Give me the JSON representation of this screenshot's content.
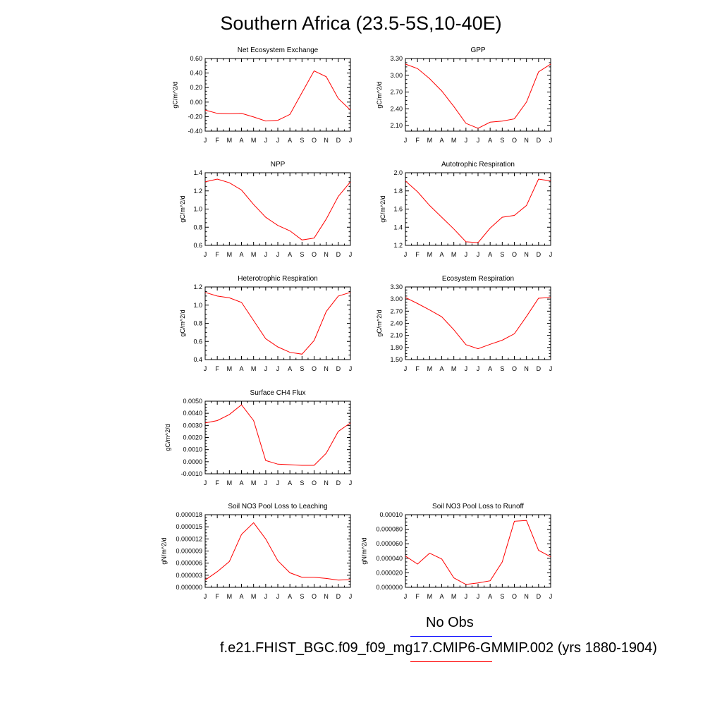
{
  "title": "Southern Africa (23.5-5S,10-40E)",
  "months": [
    "J",
    "F",
    "M",
    "A",
    "M",
    "J",
    "J",
    "A",
    "S",
    "O",
    "N",
    "D",
    "J"
  ],
  "colors": {
    "model": "#ff0000",
    "obs": "#0000ff"
  },
  "legend": {
    "obs_label": "No Obs",
    "model_label": "f.e21.FHIST_BGC.f09_f09_mg17.CMIP6-GMMIP.002 (yrs 1880-1904)"
  },
  "chart_data": [
    {
      "type": "line",
      "title": "Net Ecosystem Exchange",
      "ylabel": "gC/m^2/d",
      "ylim": [
        -0.4,
        0.6
      ],
      "yticks": [
        "-0.40",
        "-0.20",
        "0.00",
        "0.20",
        "0.40",
        "0.60"
      ],
      "categories": [
        "J",
        "F",
        "M",
        "A",
        "M",
        "J",
        "J",
        "A",
        "S",
        "O",
        "N",
        "D",
        "J"
      ],
      "series": [
        {
          "values": [
            -0.11,
            -0.155,
            -0.16,
            -0.155,
            -0.205,
            -0.26,
            -0.25,
            -0.17,
            0.13,
            0.43,
            0.35,
            0.05,
            -0.11
          ]
        }
      ]
    },
    {
      "type": "line",
      "title": "GPP",
      "ylabel": "gC/m^2/d",
      "ylim": [
        2.0,
        3.3
      ],
      "yticks": [
        "2.10",
        "2.40",
        "2.70",
        "3.00",
        "3.30"
      ],
      "categories": [
        "J",
        "F",
        "M",
        "A",
        "M",
        "J",
        "J",
        "A",
        "S",
        "O",
        "N",
        "D",
        "J"
      ],
      "series": [
        {
          "values": [
            3.2,
            3.12,
            2.94,
            2.72,
            2.44,
            2.14,
            2.05,
            2.16,
            2.18,
            2.22,
            2.52,
            3.06,
            3.2
          ]
        }
      ]
    },
    {
      "type": "line",
      "title": "NPP",
      "ylabel": "gC/m^2/d",
      "ylim": [
        0.6,
        1.4
      ],
      "yticks": [
        "0.6",
        "0.8",
        "1.0",
        "1.2",
        "1.4"
      ],
      "categories": [
        "J",
        "F",
        "M",
        "A",
        "M",
        "J",
        "J",
        "A",
        "S",
        "O",
        "N",
        "D",
        "J"
      ],
      "series": [
        {
          "values": [
            1.3,
            1.33,
            1.29,
            1.21,
            1.05,
            0.91,
            0.82,
            0.76,
            0.66,
            0.68,
            0.89,
            1.14,
            1.3
          ]
        }
      ]
    },
    {
      "type": "line",
      "title": "Autotrophic Respiration",
      "ylabel": "gC/m^2/d",
      "ylim": [
        1.2,
        2.0
      ],
      "yticks": [
        "1.2",
        "1.4",
        "1.6",
        "1.8",
        "2.0"
      ],
      "categories": [
        "J",
        "F",
        "M",
        "A",
        "M",
        "J",
        "J",
        "A",
        "S",
        "O",
        "N",
        "D",
        "J"
      ],
      "series": [
        {
          "values": [
            1.91,
            1.79,
            1.64,
            1.51,
            1.38,
            1.24,
            1.23,
            1.39,
            1.51,
            1.53,
            1.64,
            1.93,
            1.91
          ]
        }
      ]
    },
    {
      "type": "line",
      "title": "Heterotrophic Respiration",
      "ylabel": "gC/m^2/d",
      "ylim": [
        0.4,
        1.2
      ],
      "yticks": [
        "0.4",
        "0.6",
        "0.8",
        "1.0",
        "1.2"
      ],
      "categories": [
        "J",
        "F",
        "M",
        "A",
        "M",
        "J",
        "J",
        "A",
        "S",
        "O",
        "N",
        "D",
        "J"
      ],
      "series": [
        {
          "values": [
            1.14,
            1.1,
            1.08,
            1.03,
            0.83,
            0.63,
            0.54,
            0.48,
            0.46,
            0.61,
            0.93,
            1.1,
            1.14
          ]
        }
      ]
    },
    {
      "type": "line",
      "title": "Ecosystem Respiration",
      "ylabel": "gC/m^2/d",
      "ylim": [
        1.5,
        3.3
      ],
      "yticks": [
        "1.50",
        "1.80",
        "2.10",
        "2.40",
        "2.70",
        "3.00",
        "3.30"
      ],
      "categories": [
        "J",
        "F",
        "M",
        "A",
        "M",
        "J",
        "J",
        "A",
        "S",
        "O",
        "N",
        "D",
        "J"
      ],
      "series": [
        {
          "values": [
            3.04,
            2.89,
            2.73,
            2.56,
            2.24,
            1.87,
            1.77,
            1.88,
            1.98,
            2.14,
            2.57,
            3.02,
            3.04
          ]
        }
      ]
    },
    {
      "type": "line",
      "title": "Surface CH4 Flux",
      "ylabel": "gC/m^2/d",
      "ylim": [
        -0.001,
        0.005
      ],
      "yticks": [
        "-0.0010",
        "0.0000",
        "0.0010",
        "0.0020",
        "0.0030",
        "0.0040",
        "0.0050"
      ],
      "categories": [
        "J",
        "F",
        "M",
        "A",
        "M",
        "J",
        "J",
        "A",
        "S",
        "O",
        "N",
        "D",
        "J"
      ],
      "series": [
        {
          "values": [
            0.0032,
            0.0034,
            0.0039,
            0.0047,
            0.0034,
            0.0001,
            -0.0002,
            -0.00025,
            -0.0003,
            -0.0003,
            0.0007,
            0.0025,
            0.0032
          ]
        }
      ]
    },
    {
      "type": "line",
      "title": "Soil NO3 Pool Loss to Leaching",
      "ylabel": "gN/m^2/d",
      "ylim": [
        0.0,
        1.8e-05
      ],
      "yticks": [
        "0.000000",
        "0.000003",
        "0.000006",
        "0.000009",
        "0.000012",
        "0.000015",
        "0.000018"
      ],
      "categories": [
        "J",
        "F",
        "M",
        "A",
        "M",
        "J",
        "J",
        "A",
        "S",
        "O",
        "N",
        "D",
        "J"
      ],
      "series": [
        {
          "values": [
            1.8e-06,
            3.9e-06,
            6.4e-06,
            1.31e-05,
            1.6e-05,
            1.2e-05,
            6.6e-06,
            3.6e-06,
            2.5e-06,
            2.5e-06,
            2.2e-06,
            1.8e-06,
            1.9e-06
          ]
        }
      ]
    },
    {
      "type": "line",
      "title": "Soil NO3 Pool Loss to Runoff",
      "ylabel": "gN/m^2/d",
      "ylim": [
        0.0,
        0.0001
      ],
      "yticks": [
        "0.000000",
        "0.000020",
        "0.000040",
        "0.000060",
        "0.000080",
        "0.00010"
      ],
      "categories": [
        "J",
        "F",
        "M",
        "A",
        "M",
        "J",
        "J",
        "A",
        "S",
        "O",
        "N",
        "D",
        "J"
      ],
      "series": [
        {
          "values": [
            4.3e-05,
            3.2e-05,
            4.7e-05,
            3.9e-05,
            1.3e-05,
            4e-06,
            6e-06,
            9e-06,
            3.5e-05,
            9.1e-05,
            9.2e-05,
            5.1e-05,
            4.2e-05
          ]
        }
      ]
    }
  ]
}
